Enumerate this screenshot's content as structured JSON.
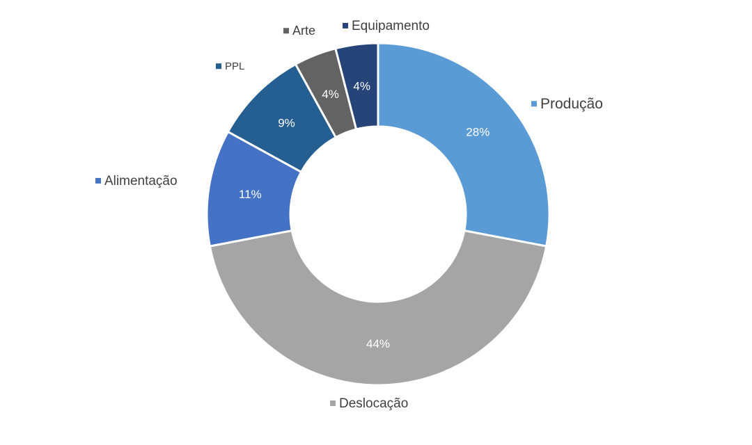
{
  "chart_data": {
    "type": "pie",
    "donut": true,
    "title": "",
    "legend_placement": "outside labels next to each slice",
    "slices": [
      {
        "label": "Produção",
        "value": 28,
        "display": "28%",
        "color": "#5B9BD5"
      },
      {
        "label": "Deslocação",
        "value": 44,
        "display": "44%",
        "color": "#A5A5A5"
      },
      {
        "label": "Alimentação",
        "value": 11,
        "display": "11%",
        "color": "#4472C4"
      },
      {
        "label": "PPL",
        "value": 9,
        "display": "9%",
        "color": "#255E91"
      },
      {
        "label": "Arte",
        "value": 4,
        "display": "4%",
        "color": "#636363"
      },
      {
        "label": "Equipamento",
        "value": 4,
        "display": "4%",
        "color": "#264478"
      }
    ]
  }
}
